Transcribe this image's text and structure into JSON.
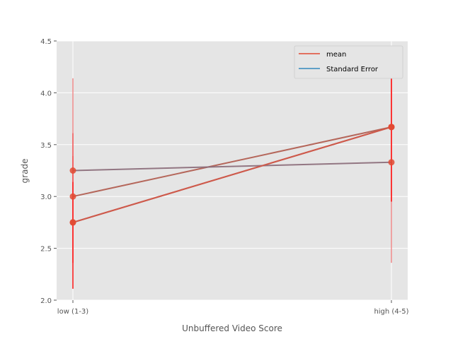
{
  "chart_data": {
    "type": "line",
    "title": "",
    "xlabel": "Unbuffered Video Score",
    "ylabel": "grade",
    "categories": [
      "low (1-3)",
      "high (4-5)"
    ],
    "ylim": [
      2.0,
      4.5
    ],
    "yticks": [
      "2.0",
      "2.5",
      "3.0",
      "3.5",
      "4.0",
      "4.5"
    ],
    "grid": true,
    "legend_position": "top-right",
    "legend": [
      {
        "label": "mean",
        "color": "#E24A33"
      },
      {
        "label": "Standard Error",
        "color": "#348ABD"
      }
    ],
    "series": [
      {
        "values": [
          2.75,
          3.67
        ],
        "error_low": [
          2.11,
          2.95
        ],
        "error_high": [
          3.39,
          4.39
        ],
        "color": "#c0504d",
        "errcolor": "#ff0000"
      },
      {
        "values": [
          3.0,
          3.67
        ],
        "error_low": [
          2.36,
          2.95
        ],
        "error_high": [
          3.61,
          4.39
        ],
        "color": "#b05a4d",
        "errcolor": "#ff0000"
      },
      {
        "values": [
          3.25,
          3.33
        ],
        "error_low": [
          2.36,
          2.36
        ],
        "error_high": [
          4.14,
          4.3
        ],
        "color": "#8a6a78",
        "errcolor": "#f08080"
      },
      {
        "values": [
          2.75,
          3.67
        ],
        "error_low": [
          2.36,
          2.95
        ],
        "error_high": [
          3.14,
          4.39
        ],
        "color": "#d05a4a",
        "errcolor": "#ff2020"
      }
    ]
  }
}
